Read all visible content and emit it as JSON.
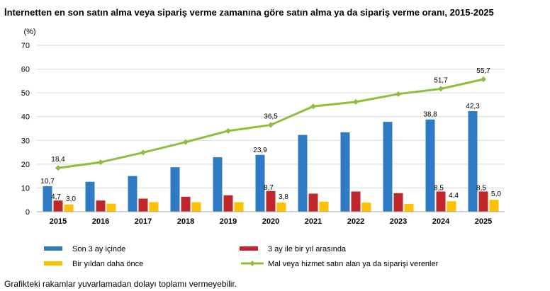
{
  "title": "İnternetten en son satın alma veya sipariş verme zamanına göre satın alma ya da sipariş verme oranı, 2015-2025",
  "footnote": "Grafikteki rakamlar yuvarlamadan dolayı toplamı vermeyebilir.",
  "colors": {
    "blue": "#2E7BC4",
    "red": "#C0272D",
    "yellow": "#FFC000",
    "green": "#8DBF3E",
    "grid": "#D9D9D9",
    "axis": "#A6A6A6"
  },
  "chart_data": {
    "type": "bar",
    "ylabel": "(%)",
    "ylim": [
      0,
      70
    ],
    "yticks": [
      "0",
      "10",
      "20",
      "30",
      "40",
      "50",
      "60",
      "70"
    ],
    "grid": true,
    "legend_position": "bottom",
    "categories": [
      "2015",
      "2016",
      "2017",
      "2018",
      "2019",
      "2020",
      "2021",
      "2022",
      "2023",
      "2024",
      "2025"
    ],
    "series": [
      {
        "name": "Son 3 ay içinde",
        "kind": "bar",
        "color": "#2E7BC4",
        "values": [
          10.7,
          12.6,
          15.0,
          18.7,
          22.9,
          23.9,
          32.3,
          33.4,
          37.8,
          38.8,
          42.3
        ],
        "labels": [
          "10,7",
          "",
          "",
          "",
          "",
          "23,9",
          "",
          "",
          "",
          "38,8",
          "42,3"
        ]
      },
      {
        "name": "3 ay ile bir yıl arasında",
        "kind": "bar",
        "color": "#C0272D",
        "values": [
          4.7,
          4.7,
          5.5,
          6.3,
          6.9,
          8.7,
          7.6,
          8.5,
          7.8,
          8.5,
          8.5
        ],
        "labels": [
          "4,7",
          "",
          "",
          "",
          "",
          "8,7",
          "",
          "",
          "",
          "8,5",
          "8,5"
        ]
      },
      {
        "name": "Bir yıldan daha önce",
        "kind": "bar",
        "color": "#FFC000",
        "values": [
          3.0,
          3.4,
          4.0,
          4.0,
          4.0,
          3.8,
          4.2,
          3.8,
          3.3,
          4.4,
          5.0
        ],
        "labels": [
          "3,0",
          "",
          "",
          "",
          "",
          "3,8",
          "",
          "",
          "",
          "4,4",
          "5,0"
        ]
      },
      {
        "name": "Mal veya hizmet satın alan ya da siparişi verenler",
        "kind": "line",
        "color": "#8DBF3E",
        "values": [
          18.4,
          20.8,
          24.9,
          29.3,
          34.0,
          36.5,
          44.3,
          46.2,
          49.5,
          51.7,
          55.7
        ],
        "labels": [
          "18,4",
          "",
          "",
          "",
          "",
          "36,5",
          "",
          "",
          "",
          "51,7",
          "55,7"
        ]
      }
    ]
  }
}
